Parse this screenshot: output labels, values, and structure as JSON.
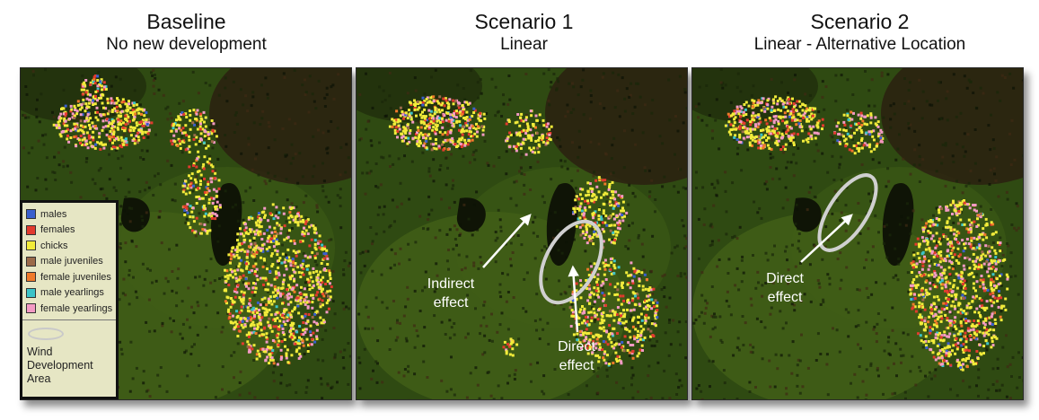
{
  "panels": [
    {
      "title": "Baseline",
      "subtitle": "No new development"
    },
    {
      "title": "Scenario 1",
      "subtitle": "Linear"
    },
    {
      "title": "Scenario 2",
      "subtitle": "Linear - Alternative Location"
    }
  ],
  "legend": {
    "items": [
      {
        "label": "males",
        "color": "#3a5fcd"
      },
      {
        "label": "females",
        "color": "#e23b2e"
      },
      {
        "label": "chicks",
        "color": "#f2ec3a"
      },
      {
        "label": "male juveniles",
        "color": "#9b6a4a"
      },
      {
        "label": "female juveniles",
        "color": "#f07a2a"
      },
      {
        "label": "male yearlings",
        "color": "#3cc3c8"
      },
      {
        "label": "female yearlings",
        "color": "#f39ac4"
      }
    ],
    "wind_label_1": "Wind",
    "wind_label_2": "Development",
    "wind_label_3": "Area"
  },
  "annotations": {
    "s1_indirect_1": "Indirect",
    "s1_indirect_2": "effect",
    "s1_direct_1": "Direct",
    "s1_direct_2": "effect",
    "s2_direct_1": "Direct",
    "s2_direct_2": "effect"
  },
  "colors": {
    "background_green": "#2f4a12",
    "dark_patch": "#141c08",
    "wind_area_outline": "#d0d0d0"
  }
}
